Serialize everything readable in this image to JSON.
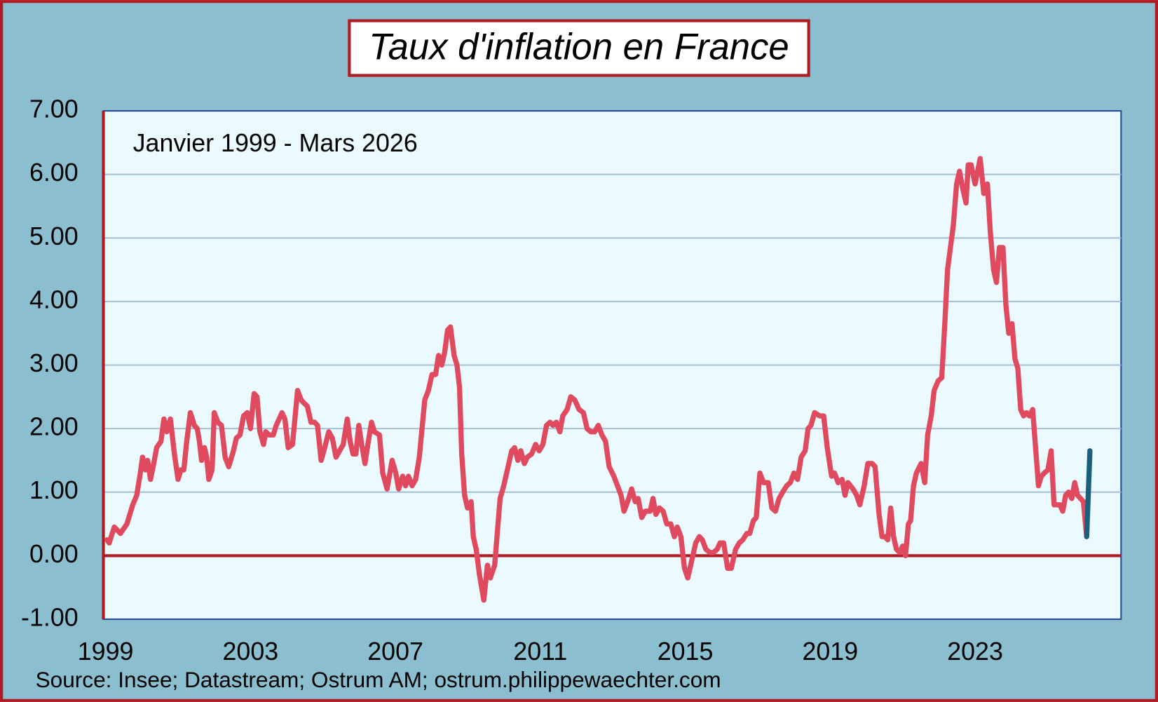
{
  "chart_data": {
    "type": "line",
    "title": "Taux d'inflation en France",
    "subtitle": "Janvier 1999 - Mars 2026",
    "source": "Source: Insee;  Datastream;  Ostrum AM; ostrum.philippewaechter.com",
    "xlim": [
      1998.94,
      2027.03
    ],
    "xticks": [
      1999,
      2003,
      2007,
      2011,
      2015,
      2019,
      2023
    ],
    "ylim": [
      -1,
      7
    ],
    "yticks": [
      {
        "value": -1,
        "label": "-1.00"
      },
      {
        "value": 0,
        "label": "0.00"
      },
      {
        "value": 1,
        "label": "1.00"
      },
      {
        "value": 2,
        "label": "2.00"
      },
      {
        "value": 3,
        "label": "3.00"
      },
      {
        "value": 4,
        "label": "4.00"
      },
      {
        "value": 5,
        "label": "5.00"
      },
      {
        "value": 6,
        "label": "6.00"
      },
      {
        "value": 7,
        "label": "7.00"
      }
    ],
    "grid": true,
    "series": [
      {
        "color": "#e04a5f",
        "x": [
          1999.04,
          1999.1,
          1999.24,
          1999.41,
          1999.59,
          1999.75,
          1999.86,
          1999.96,
          2000.02,
          2000.1,
          2000.16,
          2000.24,
          2000.33,
          2000.41,
          2000.53,
          2000.61,
          2000.69,
          2000.79,
          2000.9,
          2001.0,
          2001.08,
          2001.16,
          2001.24,
          2001.34,
          2001.45,
          2001.53,
          2001.59,
          2001.65,
          2001.73,
          2001.79,
          2001.85,
          2001.94,
          2002.0,
          2002.1,
          2002.2,
          2002.3,
          2002.4,
          2002.53,
          2002.61,
          2002.71,
          2002.81,
          2002.91,
          2003.0,
          2003.1,
          2003.18,
          2003.26,
          2003.36,
          2003.42,
          2003.51,
          2003.63,
          2003.71,
          2003.87,
          2003.95,
          2004.04,
          2004.16,
          2004.3,
          2004.4,
          2004.48,
          2004.57,
          2004.67,
          2004.77,
          2004.85,
          2004.95,
          2005.05,
          2005.16,
          2005.26,
          2005.36,
          2005.46,
          2005.56,
          2005.67,
          2005.75,
          2005.83,
          2005.91,
          2005.99,
          2006.07,
          2006.16,
          2006.24,
          2006.34,
          2006.42,
          2006.56,
          2006.65,
          2006.77,
          2006.91,
          2007.01,
          2007.09,
          2007.2,
          2007.28,
          2007.36,
          2007.46,
          2007.56,
          2007.66,
          2007.81,
          2007.91,
          2008.01,
          2008.11,
          2008.19,
          2008.28,
          2008.36,
          2008.44,
          2008.52,
          2008.62,
          2008.7,
          2008.77,
          2008.83,
          2008.91,
          2008.99,
          2009.09,
          2009.15,
          2009.23,
          2009.32,
          2009.44,
          2009.54,
          2009.62,
          2009.74,
          2009.89,
          2009.99,
          2010.09,
          2010.21,
          2010.29,
          2010.38,
          2010.46,
          2010.56,
          2010.64,
          2010.76,
          2010.87,
          2010.97,
          2011.07,
          2011.17,
          2011.27,
          2011.35,
          2011.44,
          2011.54,
          2011.62,
          2011.74,
          2011.84,
          2011.95,
          2012.07,
          2012.19,
          2012.29,
          2012.39,
          2012.5,
          2012.6,
          2012.7,
          2012.8,
          2012.9,
          2013.03,
          2013.13,
          2013.23,
          2013.31,
          2013.41,
          2013.52,
          2013.62,
          2013.7,
          2013.8,
          2013.9,
          2014.03,
          2014.11,
          2014.19,
          2014.29,
          2014.39,
          2014.49,
          2014.6,
          2014.7,
          2014.78,
          2014.88,
          2014.98,
          2015.07,
          2015.17,
          2015.29,
          2015.39,
          2015.47,
          2015.57,
          2015.68,
          2015.78,
          2015.88,
          2015.96,
          2016.06,
          2016.17,
          2016.27,
          2016.39,
          2016.49,
          2016.59,
          2016.7,
          2016.78,
          2016.88,
          2016.96,
          2017.06,
          2017.16,
          2017.29,
          2017.39,
          2017.49,
          2017.59,
          2017.69,
          2017.8,
          2017.9,
          2018.0,
          2018.1,
          2018.2,
          2018.31,
          2018.39,
          2018.47,
          2018.57,
          2018.71,
          2018.82,
          2018.92,
          2019.04,
          2019.12,
          2019.22,
          2019.33,
          2019.41,
          2019.49,
          2019.63,
          2019.73,
          2019.82,
          2019.94,
          2020.04,
          2020.16,
          2020.24,
          2020.35,
          2020.43,
          2020.51,
          2020.59,
          2020.67,
          2020.75,
          2020.83,
          2020.92,
          2021.0,
          2021.08,
          2021.16,
          2021.22,
          2021.3,
          2021.38,
          2021.51,
          2021.61,
          2021.69,
          2021.79,
          2021.87,
          2021.98,
          2022.08,
          2022.16,
          2022.24,
          2022.32,
          2022.4,
          2022.49,
          2022.57,
          2022.65,
          2022.75,
          2022.81,
          2022.89,
          2023.0,
          2023.14,
          2023.24,
          2023.34,
          2023.42,
          2023.51,
          2023.59,
          2023.67,
          2023.77,
          2023.85,
          2023.93,
          2024.02,
          2024.1,
          2024.18,
          2024.26,
          2024.34,
          2024.42,
          2024.5,
          2024.59,
          2024.67,
          2024.75,
          2024.83,
          2024.91,
          2025.01,
          2025.1,
          2025.18,
          2025.26,
          2025.34,
          2025.42,
          2025.5,
          2025.58,
          2025.67,
          2025.75,
          2025.83,
          2025.91,
          2025.99,
          2026.08
        ],
        "values": [
          0.25,
          0.2,
          0.45,
          0.35,
          0.5,
          0.8,
          0.95,
          1.3,
          1.55,
          1.35,
          1.5,
          1.2,
          1.45,
          1.7,
          1.8,
          2.15,
          1.95,
          2.15,
          1.6,
          1.2,
          1.35,
          1.35,
          1.8,
          2.25,
          2.05,
          2.0,
          1.8,
          1.5,
          1.7,
          1.55,
          1.2,
          1.35,
          2.25,
          2.1,
          2.05,
          1.55,
          1.4,
          1.65,
          1.85,
          1.9,
          2.2,
          2.25,
          2.0,
          2.55,
          2.5,
          1.95,
          1.75,
          1.95,
          1.9,
          1.9,
          2.05,
          2.25,
          2.15,
          1.7,
          1.75,
          2.6,
          2.45,
          2.4,
          2.35,
          2.1,
          2.1,
          2.05,
          1.5,
          1.7,
          1.95,
          1.85,
          1.55,
          1.65,
          1.75,
          2.15,
          1.8,
          1.6,
          1.6,
          2.05,
          1.75,
          1.45,
          1.75,
          2.1,
          1.95,
          1.9,
          1.3,
          1.05,
          1.5,
          1.3,
          1.05,
          1.25,
          1.1,
          1.25,
          1.1,
          1.2,
          1.55,
          2.45,
          2.6,
          2.85,
          2.85,
          3.15,
          3.0,
          3.2,
          3.55,
          3.6,
          3.15,
          3.0,
          2.65,
          1.6,
          0.95,
          0.75,
          0.85,
          0.3,
          0.1,
          -0.3,
          -0.7,
          -0.15,
          -0.35,
          -0.15,
          0.9,
          1.1,
          1.35,
          1.65,
          1.7,
          1.5,
          1.65,
          1.45,
          1.55,
          1.6,
          1.75,
          1.65,
          1.75,
          2.05,
          2.1,
          2.05,
          2.1,
          1.95,
          2.2,
          2.3,
          2.5,
          2.45,
          2.3,
          2.25,
          2.0,
          1.95,
          1.95,
          2.05,
          1.9,
          1.8,
          1.4,
          1.25,
          1.1,
          0.95,
          0.7,
          0.85,
          1.05,
          0.85,
          0.9,
          0.6,
          0.7,
          0.7,
          0.9,
          0.65,
          0.75,
          0.7,
          0.5,
          0.5,
          0.3,
          0.45,
          0.3,
          -0.2,
          -0.35,
          -0.1,
          0.2,
          0.3,
          0.25,
          0.1,
          0.05,
          0.05,
          0.1,
          0.2,
          0.2,
          -0.2,
          -0.2,
          0.1,
          0.2,
          0.25,
          0.35,
          0.35,
          0.55,
          0.6,
          1.3,
          1.15,
          1.15,
          0.75,
          0.7,
          0.9,
          1.0,
          1.1,
          1.15,
          1.3,
          1.2,
          1.55,
          1.65,
          2.0,
          2.05,
          2.25,
          2.2,
          2.2,
          1.7,
          1.25,
          1.3,
          1.15,
          1.2,
          0.95,
          1.15,
          1.05,
          0.95,
          0.8,
          1.1,
          1.45,
          1.45,
          1.4,
          0.65,
          0.3,
          0.3,
          0.25,
          0.75,
          0.3,
          0.1,
          0.05,
          0.15,
          0.0,
          0.5,
          0.55,
          1.1,
          1.3,
          1.45,
          1.15,
          1.9,
          2.2,
          2.6,
          2.75,
          2.8,
          3.6,
          4.5,
          4.85,
          5.2,
          5.85,
          6.05,
          5.8,
          5.55,
          6.15,
          6.15,
          5.85,
          6.25,
          5.7,
          5.85,
          5.1,
          4.5,
          4.3,
          4.85,
          4.85,
          3.95,
          3.5,
          3.65,
          3.1,
          2.95,
          2.3,
          2.2,
          2.25,
          2.2,
          2.3,
          1.7,
          1.1,
          1.25,
          1.3,
          1.35,
          1.65,
          0.8,
          0.8,
          0.8,
          0.7,
          0.95,
          1.0,
          0.9,
          1.15,
          0.95,
          0.9,
          0.85,
          0.3
        ]
      },
      {
        "color": "#1b5f7d",
        "x": [
          2026.08,
          2026.17
        ],
        "values": [
          0.3,
          1.65
        ]
      }
    ]
  }
}
